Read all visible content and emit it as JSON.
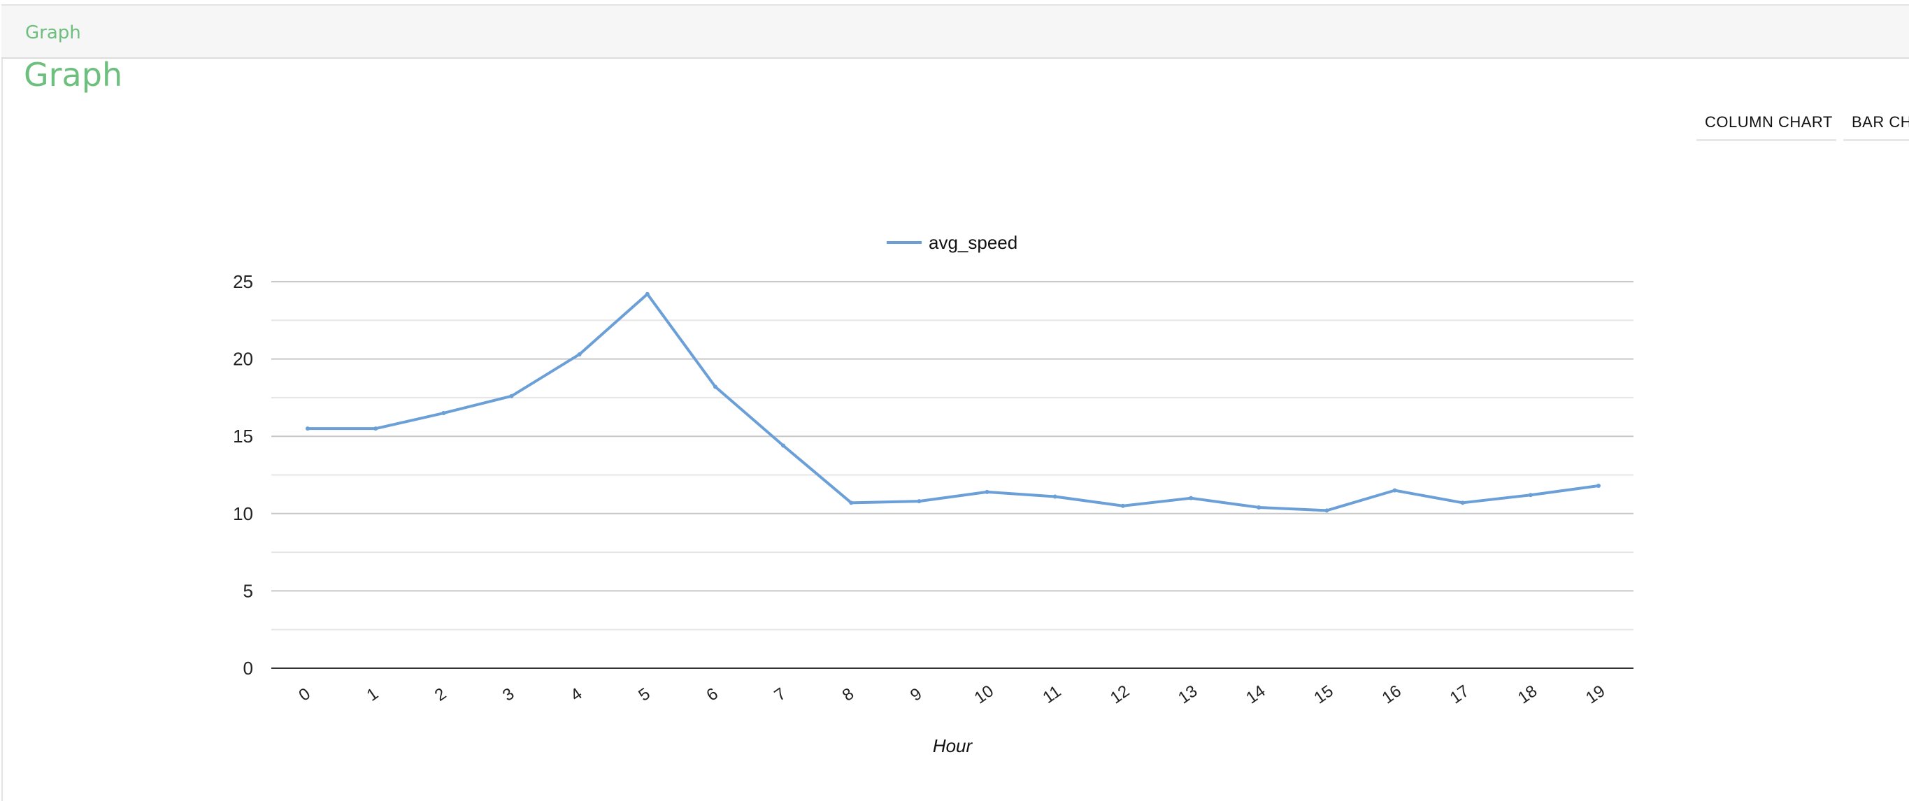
{
  "header": {
    "title": "Graph"
  },
  "page": {
    "title": "Graph"
  },
  "tabs": [
    {
      "label": "COLUMN CHART"
    },
    {
      "label": "BAR CH"
    }
  ],
  "colors": {
    "series": "#6a9fd8",
    "accent": "#6cbf7d",
    "gridline_major": "#c8c8c8",
    "gridline_minor": "#e6e6e6",
    "axis": "#333333"
  },
  "chart_data": {
    "type": "line",
    "title": "",
    "xlabel": "Hour",
    "ylabel": "",
    "legend_position": "top-center",
    "grid": true,
    "ylim": [
      0,
      25
    ],
    "yticks": [
      0,
      5,
      10,
      15,
      20,
      25
    ],
    "categories": [
      "0",
      "1",
      "2",
      "3",
      "4",
      "5",
      "6",
      "7",
      "8",
      "9",
      "10",
      "11",
      "12",
      "13",
      "14",
      "15",
      "16",
      "17",
      "18",
      "19"
    ],
    "series": [
      {
        "name": "avg_speed",
        "values": [
          15.5,
          15.5,
          16.5,
          17.6,
          20.3,
          24.2,
          18.2,
          14.4,
          10.7,
          10.8,
          11.4,
          11.1,
          10.5,
          11.0,
          10.4,
          10.2,
          11.5,
          10.7,
          11.2,
          11.8
        ]
      }
    ]
  }
}
